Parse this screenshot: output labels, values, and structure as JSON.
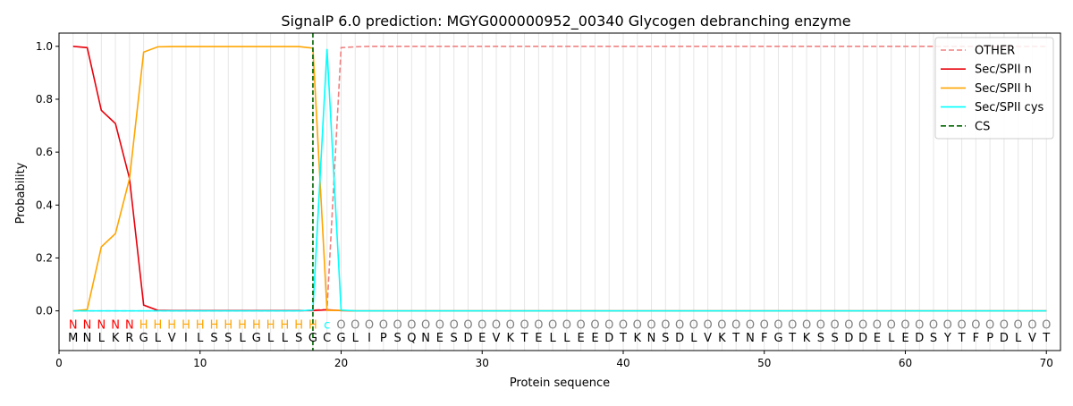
{
  "chart_data": {
    "type": "line",
    "title": "SignalP 6.0 prediction: MGYG000000952_00340 Glycogen debranching enzyme",
    "xlabel": "Protein sequence",
    "ylabel": "Probability",
    "xlim": [
      0,
      71
    ],
    "ylim": [
      -0.15,
      1.05
    ],
    "xticks": [
      0,
      10,
      20,
      30,
      40,
      50,
      60,
      70
    ],
    "yticks": [
      0.0,
      0.2,
      0.4,
      0.6,
      0.8,
      1.0
    ],
    "ytick_labels": [
      "0.0",
      "0.2",
      "0.4",
      "0.6",
      "0.8",
      "1.0"
    ],
    "grid": "vertical lines at each residue",
    "legend_position": "top-right",
    "sequence": [
      "M",
      "N",
      "L",
      "K",
      "R",
      "G",
      "L",
      "V",
      "I",
      "L",
      "S",
      "S",
      "L",
      "G",
      "L",
      "L",
      "S",
      "G",
      "C",
      "G",
      "L",
      "I",
      "P",
      "S",
      "Q",
      "N",
      "E",
      "S",
      "D",
      "E",
      "V",
      "K",
      "T",
      "E",
      "L",
      "L",
      "E",
      "E",
      "D",
      "T",
      "K",
      "N",
      "S",
      "D",
      "L",
      "V",
      "K",
      "T",
      "N",
      "F",
      "G",
      "T",
      "K",
      "S",
      "S",
      "D",
      "D",
      "E",
      "L",
      "E",
      "D",
      "S",
      "Y",
      "T",
      "F",
      "P",
      "D",
      "L",
      "V",
      "T"
    ],
    "labels": [
      "N",
      "N",
      "N",
      "N",
      "N",
      "H",
      "H",
      "H",
      "H",
      "H",
      "H",
      "H",
      "H",
      "H",
      "H",
      "H",
      "H",
      "H",
      "c",
      "O",
      "O",
      "O",
      "O",
      "O",
      "O",
      "O",
      "O",
      "O",
      "O",
      "O",
      "O",
      "O",
      "O",
      "O",
      "O",
      "O",
      "O",
      "O",
      "O",
      "O",
      "O",
      "O",
      "O",
      "O",
      "O",
      "O",
      "O",
      "O",
      "O",
      "O",
      "O",
      "O",
      "O",
      "O",
      "O",
      "O",
      "O",
      "O",
      "O",
      "O",
      "O",
      "O",
      "O",
      "O",
      "O",
      "O",
      "O",
      "O",
      "O",
      "O"
    ],
    "label_colors": {
      "N": "#ff0000",
      "H": "#ffa500",
      "c": "#00ffff",
      "O": "#808080"
    },
    "cleavage_site": 18,
    "series": [
      {
        "name": "OTHER",
        "color": "#f08080",
        "dash": "dashed",
        "values": [
          0,
          0,
          0,
          0,
          0,
          0,
          0,
          0,
          0,
          0,
          0,
          0,
          0,
          0,
          0,
          0,
          0,
          0.003,
          0.005,
          0.995,
          0.998,
          1,
          1,
          1,
          1,
          1,
          1,
          1,
          1,
          1,
          1,
          1,
          1,
          1,
          1,
          1,
          1,
          1,
          1,
          1,
          1,
          1,
          1,
          1,
          1,
          1,
          1,
          1,
          1,
          1,
          1,
          1,
          1,
          1,
          1,
          1,
          1,
          1,
          1,
          1,
          1,
          1,
          1,
          1,
          1,
          1,
          1,
          1,
          1,
          1
        ]
      },
      {
        "name": "Sec/SPII n",
        "color": "#e8000b",
        "dash": "solid",
        "values": [
          1.0,
          0.995,
          0.758,
          0.708,
          0.5,
          0.022,
          0.002,
          0.001,
          0.001,
          0.001,
          0.001,
          0.001,
          0.001,
          0.001,
          0.001,
          0.001,
          0.001,
          0.001,
          0.004,
          0.001,
          0,
          0,
          0,
          0,
          0,
          0,
          0,
          0,
          0,
          0,
          0,
          0,
          0,
          0,
          0,
          0,
          0,
          0,
          0,
          0,
          0,
          0,
          0,
          0,
          0,
          0,
          0,
          0,
          0,
          0,
          0,
          0,
          0,
          0,
          0,
          0,
          0,
          0,
          0,
          0,
          0,
          0,
          0,
          0,
          0,
          0,
          0,
          0,
          0,
          0
        ]
      },
      {
        "name": "Sec/SPII h",
        "color": "#ffa500",
        "dash": "solid",
        "values": [
          0.0,
          0.005,
          0.242,
          0.292,
          0.5,
          0.978,
          0.998,
          0.999,
          0.999,
          0.999,
          0.999,
          0.999,
          0.999,
          0.999,
          0.999,
          0.999,
          0.999,
          0.993,
          0.002,
          0.002,
          0,
          0,
          0,
          0,
          0,
          0,
          0,
          0,
          0,
          0,
          0,
          0,
          0,
          0,
          0,
          0,
          0,
          0,
          0,
          0,
          0,
          0,
          0,
          0,
          0,
          0,
          0,
          0,
          0,
          0,
          0,
          0,
          0,
          0,
          0,
          0,
          0,
          0,
          0,
          0,
          0,
          0,
          0,
          0,
          0,
          0,
          0,
          0,
          0,
          0
        ]
      },
      {
        "name": "Sec/SPII cys",
        "color": "#00ffff",
        "dash": "solid",
        "values": [
          0,
          0,
          0,
          0,
          0,
          0,
          0,
          0,
          0,
          0,
          0,
          0,
          0,
          0,
          0,
          0,
          0,
          0.003,
          0.99,
          0.003,
          0,
          0,
          0,
          0,
          0,
          0,
          0,
          0,
          0,
          0,
          0,
          0,
          0,
          0,
          0,
          0,
          0,
          0,
          0,
          0,
          0,
          0,
          0,
          0,
          0,
          0,
          0,
          0,
          0,
          0,
          0,
          0,
          0,
          0,
          0,
          0,
          0,
          0,
          0,
          0,
          0,
          0,
          0,
          0,
          0,
          0,
          0,
          0,
          0,
          0
        ]
      }
    ],
    "cs_legend": {
      "name": "CS",
      "color": "#006400",
      "dash": "dashed"
    }
  }
}
